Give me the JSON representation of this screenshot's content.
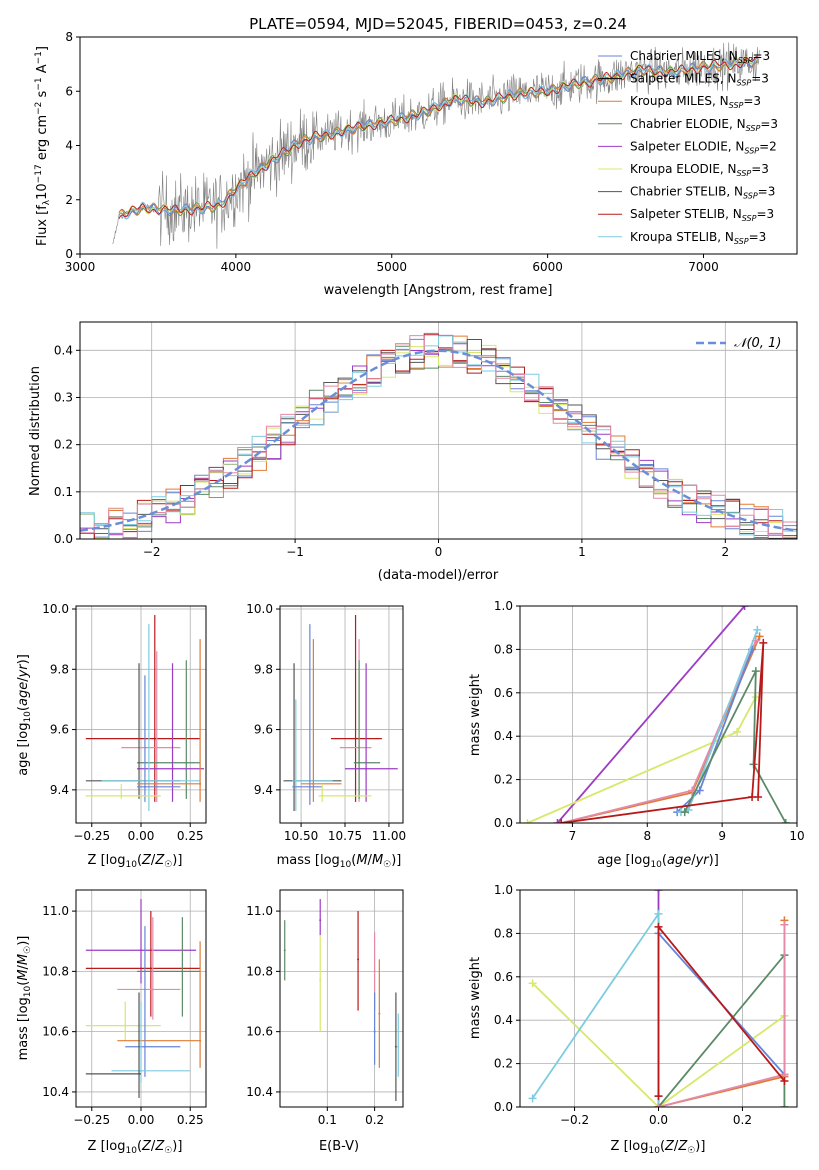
{
  "colors": {
    "chabrier_miles": "#6685d8",
    "salpeter_miles": "#000000",
    "kroupa_miles": "#e07b35",
    "chabrier_elodie": "#5a8a66",
    "salpeter_elodie": "#9b3cc4",
    "kroupa_elodie": "#d7e86a",
    "chabrier_stelib": "#555555",
    "salpeter_stelib": "#b81a1a",
    "kroupa_stelib": "#7ecce0",
    "extra_pink": "#e58aa9",
    "spectrum": "#808080",
    "normal": "#6a8fd8"
  },
  "chart_data": [
    {
      "id": "spectrum",
      "type": "line",
      "title": "PLATE=0594, MJD=52045, FIBERID=0453, z=0.24",
      "xlabel": "wavelength [Angstrom, rest frame]",
      "ylabel": "Flux [f_λ 10^-17 erg cm^-2 s^-1 A^-1]",
      "xlim": [
        3000,
        7600
      ],
      "ylim": [
        0,
        8
      ],
      "xticks": [
        "3000",
        "4000",
        "5000",
        "6000",
        "7000"
      ],
      "yticks": [
        "0",
        "2",
        "4",
        "6",
        "8"
      ],
      "legend_position": "right",
      "legend": [
        {
          "model": "Chabrier MILES",
          "nssp": "3",
          "color_key": "chabrier_miles"
        },
        {
          "model": "Salpeter MILES",
          "nssp": "3",
          "color_key": "salpeter_miles"
        },
        {
          "model": "Kroupa MILES",
          "nssp": "3",
          "color_key": "kroupa_miles"
        },
        {
          "model": "Chabrier ELODIE",
          "nssp": "3",
          "color_key": "chabrier_elodie"
        },
        {
          "model": "Salpeter ELODIE",
          "nssp": "2",
          "color_key": "salpeter_elodie"
        },
        {
          "model": "Kroupa ELODIE",
          "nssp": "3",
          "color_key": "kroupa_elodie"
        },
        {
          "model": "Chabrier STELIB",
          "nssp": "3",
          "color_key": "chabrier_stelib"
        },
        {
          "model": "Salpeter STELIB",
          "nssp": "3",
          "color_key": "salpeter_stelib"
        },
        {
          "model": "Kroupa STELIB",
          "nssp": "3",
          "color_key": "kroupa_stelib"
        }
      ],
      "continuum": {
        "x": [
          3200,
          3250,
          3400,
          3600,
          3800,
          3900,
          4000,
          4100,
          4200,
          4300,
          4400,
          4500,
          4600,
          4800,
          5000,
          5200,
          5400,
          5600,
          5800,
          6000,
          6200,
          6400,
          6600,
          6800,
          7000,
          7200,
          7350
        ],
        "y": [
          0.0,
          1.4,
          1.7,
          1.6,
          1.7,
          1.8,
          2.4,
          2.9,
          3.3,
          3.7,
          4.1,
          4.3,
          4.4,
          4.7,
          4.9,
          5.2,
          5.7,
          5.6,
          5.9,
          6.0,
          6.3,
          6.5,
          6.8,
          6.7,
          6.9,
          7.0,
          7.1
        ]
      }
    },
    {
      "id": "residuals",
      "type": "histogram",
      "xlabel": "(data-model)/error",
      "ylabel": "Normed distribution",
      "xlim": [
        -2.5,
        2.5
      ],
      "ylim": [
        0,
        0.46
      ],
      "xticks": [
        "−2",
        "−1",
        "0",
        "1",
        "2"
      ],
      "yticks": [
        "0.0",
        "0.1",
        "0.2",
        "0.3",
        "0.4"
      ],
      "legend_label": "𝒩(0, 1)",
      "legend_position": "top-right",
      "bin_width": 0.1
    },
    {
      "id": "age_vs_Z",
      "type": "errorbar",
      "xlabel": "Z [log₁₀(Z/Z☉)]",
      "ylabel": "age  [log₁₀(age/yr)]",
      "xlim": [
        -0.33,
        0.33
      ],
      "ylim": [
        9.29,
        10.01
      ],
      "xticks": [
        {
          "v": -0.25,
          "t": "−0.25"
        },
        {
          "v": 0.0,
          "t": "0.00"
        },
        {
          "v": 0.25,
          "t": "0.25"
        }
      ],
      "yticks": [
        {
          "v": 9.4,
          "t": "9.4"
        },
        {
          "v": 9.6,
          "t": "9.6"
        },
        {
          "v": 9.8,
          "t": "9.8"
        },
        {
          "v": 10.0,
          "t": "10.0"
        }
      ],
      "points": [
        {
          "c": "salpeter_stelib",
          "x": 0.07,
          "y": 9.57,
          "xe": [
            -0.28,
            0.3
          ],
          "ye": [
            9.36,
            9.98
          ]
        },
        {
          "c": "extra_pink",
          "x": 0.08,
          "y": 9.54,
          "xe": [
            -0.1,
            0.2
          ],
          "ye": [
            9.36,
            9.86
          ]
        },
        {
          "c": "chabrier_elodie",
          "x": 0.23,
          "y": 9.49,
          "xe": [
            -0.02,
            0.3
          ],
          "ye": [
            9.37,
            9.83
          ]
        },
        {
          "c": "salpeter_elodie",
          "x": 0.16,
          "y": 9.47,
          "xe": [
            -0.02,
            0.32
          ],
          "ye": [
            9.36,
            9.82
          ]
        },
        {
          "c": "chabrier_stelib",
          "x": -0.01,
          "y": 9.43,
          "xe": [
            -0.28,
            0.2
          ],
          "ye": [
            9.37,
            9.82
          ]
        },
        {
          "c": "kroupa_stelib",
          "x": 0.04,
          "y": 9.43,
          "xe": [
            -0.2,
            0.3
          ],
          "ye": [
            9.33,
            9.95
          ]
        },
        {
          "c": "kroupa_miles",
          "x": 0.3,
          "y": 9.42,
          "xe": [
            -0.02,
            0.3
          ],
          "ye": [
            9.36,
            9.9
          ]
        },
        {
          "c": "chabrier_miles",
          "x": 0.02,
          "y": 9.41,
          "xe": [
            -0.02,
            0.2
          ],
          "ye": [
            9.36,
            9.78
          ]
        },
        {
          "c": "kroupa_elodie",
          "x": -0.1,
          "y": 9.38,
          "xe": [
            -0.28,
            0.1
          ],
          "ye": [
            9.37,
            9.42
          ]
        }
      ]
    },
    {
      "id": "age_vs_mass",
      "type": "errorbar",
      "xlabel": "mass [log₁₀(M/M☉)]",
      "ylabel": "",
      "xlim": [
        10.38,
        11.08
      ],
      "ylim": [
        9.29,
        10.01
      ],
      "xticks": [
        {
          "v": 10.5,
          "t": "10.50"
        },
        {
          "v": 10.75,
          "t": "10.75"
        },
        {
          "v": 11.0,
          "t": "11.00"
        }
      ],
      "yticks": [
        {
          "v": 9.4,
          "t": "9.4"
        },
        {
          "v": 9.6,
          "t": "9.6"
        },
        {
          "v": 9.8,
          "t": "9.8"
        },
        {
          "v": 10.0,
          "t": "10.0"
        }
      ],
      "points": [
        {
          "c": "salpeter_stelib",
          "x": 10.81,
          "y": 9.57,
          "xe": [
            10.67,
            10.96
          ],
          "ye": [
            9.36,
            9.98
          ]
        },
        {
          "c": "extra_pink",
          "x": 10.83,
          "y": 9.54,
          "xe": [
            10.72,
            10.9
          ],
          "ye": [
            9.36,
            9.9
          ]
        },
        {
          "c": "chabrier_elodie",
          "x": 10.83,
          "y": 9.49,
          "xe": [
            10.8,
            10.95
          ],
          "ye": [
            9.37,
            9.83
          ]
        },
        {
          "c": "salpeter_elodie",
          "x": 10.87,
          "y": 9.47,
          "xe": [
            10.75,
            11.05
          ],
          "ye": [
            9.36,
            9.82
          ]
        },
        {
          "c": "chabrier_stelib",
          "x": 10.46,
          "y": 9.43,
          "xe": [
            10.4,
            10.73
          ],
          "ye": [
            9.33,
            9.82
          ]
        },
        {
          "c": "kroupa_stelib",
          "x": 10.47,
          "y": 9.43,
          "xe": [
            10.45,
            10.68
          ],
          "ye": [
            9.33,
            9.7
          ]
        },
        {
          "c": "kroupa_miles",
          "x": 10.57,
          "y": 9.42,
          "xe": [
            10.5,
            10.73
          ],
          "ye": [
            9.36,
            9.9
          ]
        },
        {
          "c": "chabrier_miles",
          "x": 10.55,
          "y": 9.41,
          "xe": [
            10.45,
            10.62
          ],
          "ye": [
            9.35,
            9.95
          ]
        },
        {
          "c": "kroupa_elodie",
          "x": 10.62,
          "y": 9.38,
          "xe": [
            10.6,
            10.9
          ],
          "ye": [
            9.36,
            9.42
          ]
        }
      ]
    },
    {
      "id": "weight_vs_age",
      "type": "line",
      "xlabel": "age  [log₁₀(age/yr)]",
      "ylabel": "mass weight",
      "xlim": [
        6.3,
        10.0
      ],
      "ylim": [
        0,
        1.0
      ],
      "xticks": [
        {
          "v": 7,
          "t": "7"
        },
        {
          "v": 8,
          "t": "8"
        },
        {
          "v": 9,
          "t": "9"
        },
        {
          "v": 10,
          "t": "10"
        }
      ],
      "yticks": [
        {
          "v": 0,
          "t": "0.0"
        },
        {
          "v": 0.2,
          "t": "0.2"
        },
        {
          "v": 0.4,
          "t": "0.4"
        },
        {
          "v": 0.6,
          "t": "0.6"
        },
        {
          "v": 0.8,
          "t": "0.8"
        },
        {
          "v": 1.0,
          "t": "1.0"
        }
      ],
      "series": [
        {
          "c": "salpeter_elodie",
          "x": [
            6.8,
            9.3
          ],
          "y": [
            0.0,
            1.0
          ]
        },
        {
          "c": "kroupa_elodie",
          "x": [
            6.4,
            9.2,
            9.45
          ],
          "y": [
            0.0,
            0.42,
            0.58
          ]
        },
        {
          "c": "kroupa_miles",
          "x": [
            6.85,
            8.6,
            9.5
          ],
          "y": [
            0.0,
            0.14,
            0.86
          ]
        },
        {
          "c": "extra_pink",
          "x": [
            6.85,
            8.6,
            9.45
          ],
          "y": [
            0.0,
            0.15,
            0.84
          ]
        },
        {
          "c": "chabrier_miles",
          "x": [
            8.4,
            8.7,
            9.4
          ],
          "y": [
            0.05,
            0.15,
            0.8
          ]
        },
        {
          "c": "kroupa_stelib",
          "x": [
            8.45,
            8.55,
            9.47
          ],
          "y": [
            0.05,
            0.06,
            0.89
          ]
        },
        {
          "c": "chabrier_elodie",
          "x": [
            8.5,
            9.45,
            9.42,
            9.85
          ],
          "y": [
            0.05,
            0.7,
            0.27,
            0.0
          ]
        },
        {
          "c": "salpeter_stelib",
          "x": [
            6.85,
            9.4,
            9.55,
            9.48
          ],
          "y": [
            0.0,
            0.12,
            0.83,
            0.12
          ]
        }
      ]
    },
    {
      "id": "mass_vs_Z",
      "type": "errorbar",
      "xlabel": "Z [log₁₀(Z/Z☉)]",
      "ylabel": "mass [log₁₀(M/M☉)]",
      "xlim": [
        -0.33,
        0.33
      ],
      "ylim": [
        10.35,
        11.07
      ],
      "xticks": [
        {
          "v": -0.25,
          "t": "−0.25"
        },
        {
          "v": 0.0,
          "t": "0.00"
        },
        {
          "v": 0.25,
          "t": "0.25"
        }
      ],
      "yticks": [
        {
          "v": 10.4,
          "t": "10.4"
        },
        {
          "v": 10.6,
          "t": "10.6"
        },
        {
          "v": 10.8,
          "t": "10.8"
        },
        {
          "v": 11.0,
          "t": "11.0"
        }
      ],
      "points": [
        {
          "c": "salpeter_elodie",
          "x": 0.0,
          "y": 10.87,
          "xe": [
            -0.28,
            0.28
          ],
          "ye": [
            10.76,
            11.04
          ]
        },
        {
          "c": "salpeter_stelib",
          "x": 0.05,
          "y": 10.81,
          "xe": [
            -0.28,
            0.3
          ],
          "ye": [
            10.65,
            11.0
          ]
        },
        {
          "c": "chabrier_elodie",
          "x": 0.21,
          "y": 10.8,
          "xe": [
            -0.02,
            0.3
          ],
          "ye": [
            10.65,
            10.98
          ]
        },
        {
          "c": "extra_pink",
          "x": 0.06,
          "y": 10.74,
          "xe": [
            -0.12,
            0.2
          ],
          "ye": [
            10.64,
            10.98
          ]
        },
        {
          "c": "kroupa_elodie",
          "x": -0.08,
          "y": 10.62,
          "xe": [
            -0.28,
            0.1
          ],
          "ye": [
            10.57,
            10.7
          ]
        },
        {
          "c": "kroupa_miles",
          "x": 0.3,
          "y": 10.57,
          "xe": [
            -0.12,
            0.3
          ],
          "ye": [
            10.48,
            10.9
          ]
        },
        {
          "c": "chabrier_miles",
          "x": 0.02,
          "y": 10.55,
          "xe": [
            -0.08,
            0.2
          ],
          "ye": [
            10.45,
            10.95
          ]
        },
        {
          "c": "kroupa_stelib",
          "x": 0.0,
          "y": 10.47,
          "xe": [
            -0.15,
            0.25
          ],
          "ye": [
            10.43,
            10.7
          ]
        },
        {
          "c": "chabrier_stelib",
          "x": -0.01,
          "y": 10.46,
          "xe": [
            -0.28,
            0.0
          ],
          "ye": [
            10.38,
            10.73
          ]
        }
      ]
    },
    {
      "id": "mass_vs_EBV",
      "type": "errorbar",
      "xlabel": "E(B-V)",
      "ylabel": "",
      "xlim": [
        0.0,
        0.26
      ],
      "ylim": [
        10.35,
        11.07
      ],
      "xticks": [
        {
          "v": 0.1,
          "t": "0.1"
        },
        {
          "v": 0.2,
          "t": "0.2"
        }
      ],
      "yticks": [
        {
          "v": 10.4,
          "t": "10.4"
        },
        {
          "v": 10.6,
          "t": "10.6"
        },
        {
          "v": 10.8,
          "t": "10.8"
        },
        {
          "v": 11.0,
          "t": "11.0"
        }
      ],
      "points": [
        {
          "c": "chabrier_elodie",
          "x": 0.01,
          "y": 10.87,
          "ye": [
            10.77,
            10.97
          ]
        },
        {
          "c": "salpeter_elodie",
          "x": 0.085,
          "y": 10.97,
          "ye": [
            10.92,
            11.04
          ]
        },
        {
          "c": "kroupa_elodie",
          "x": 0.085,
          "y": 10.77,
          "ye": [
            10.6,
            10.92
          ]
        },
        {
          "c": "salpeter_stelib",
          "x": 0.165,
          "y": 10.84,
          "ye": [
            10.67,
            11.0
          ]
        },
        {
          "c": "extra_pink",
          "x": 0.2,
          "y": 10.8,
          "ye": [
            10.67,
            10.93
          ]
        },
        {
          "c": "chabrier_miles",
          "x": 0.2,
          "y": 10.6,
          "ye": [
            10.49,
            10.73
          ]
        },
        {
          "c": "kroupa_miles",
          "x": 0.21,
          "y": 10.66,
          "ye": [
            10.48,
            10.84
          ]
        },
        {
          "c": "chabrier_stelib",
          "x": 0.245,
          "y": 10.55,
          "ye": [
            10.37,
            10.73
          ]
        },
        {
          "c": "kroupa_stelib",
          "x": 0.25,
          "y": 10.55,
          "ye": [
            10.45,
            10.66
          ]
        }
      ]
    },
    {
      "id": "weight_vs_Z",
      "type": "line",
      "xlabel": "Z [log₁₀(Z/Z☉)]",
      "ylabel": "mass weight",
      "xlim": [
        -0.33,
        0.33
      ],
      "ylim": [
        0,
        1.0
      ],
      "xticks": [
        {
          "v": -0.2,
          "t": "−0.2"
        },
        {
          "v": 0.0,
          "t": "0.0"
        },
        {
          "v": 0.2,
          "t": "0.2"
        }
      ],
      "yticks": [
        {
          "v": 0,
          "t": "0.0"
        },
        {
          "v": 0.2,
          "t": "0.2"
        },
        {
          "v": 0.4,
          "t": "0.4"
        },
        {
          "v": 0.6,
          "t": "0.6"
        },
        {
          "v": 0.8,
          "t": "0.8"
        },
        {
          "v": 1.0,
          "t": "1.0"
        }
      ],
      "series": [
        {
          "c": "salpeter_elodie",
          "x": [
            0.0,
            0.0
          ],
          "y": [
            0.0,
            1.0
          ]
        },
        {
          "c": "kroupa_elodie",
          "x": [
            -0.3,
            0.0,
            0.3
          ],
          "y": [
            0.57,
            0.0,
            0.42
          ]
        },
        {
          "c": "kroupa_stelib",
          "x": [
            -0.3,
            0.0,
            0.0
          ],
          "y": [
            0.04,
            0.89,
            0.0
          ]
        },
        {
          "c": "chabrier_miles",
          "x": [
            0.0,
            0.0,
            0.3
          ],
          "y": [
            0.05,
            0.8,
            0.15
          ]
        },
        {
          "c": "chabrier_elodie",
          "x": [
            0.0,
            0.3,
            0.3
          ],
          "y": [
            0.0,
            0.7,
            0.0
          ]
        },
        {
          "c": "kroupa_miles",
          "x": [
            0.0,
            0.3,
            0.3
          ],
          "y": [
            0.0,
            0.14,
            0.86
          ]
        },
        {
          "c": "extra_pink",
          "x": [
            0.0,
            0.3,
            0.3
          ],
          "y": [
            0.0,
            0.15,
            0.84
          ]
        },
        {
          "c": "salpeter_stelib",
          "x": [
            0.0,
            0.0,
            0.3
          ],
          "y": [
            0.05,
            0.83,
            0.12
          ]
        }
      ]
    }
  ]
}
